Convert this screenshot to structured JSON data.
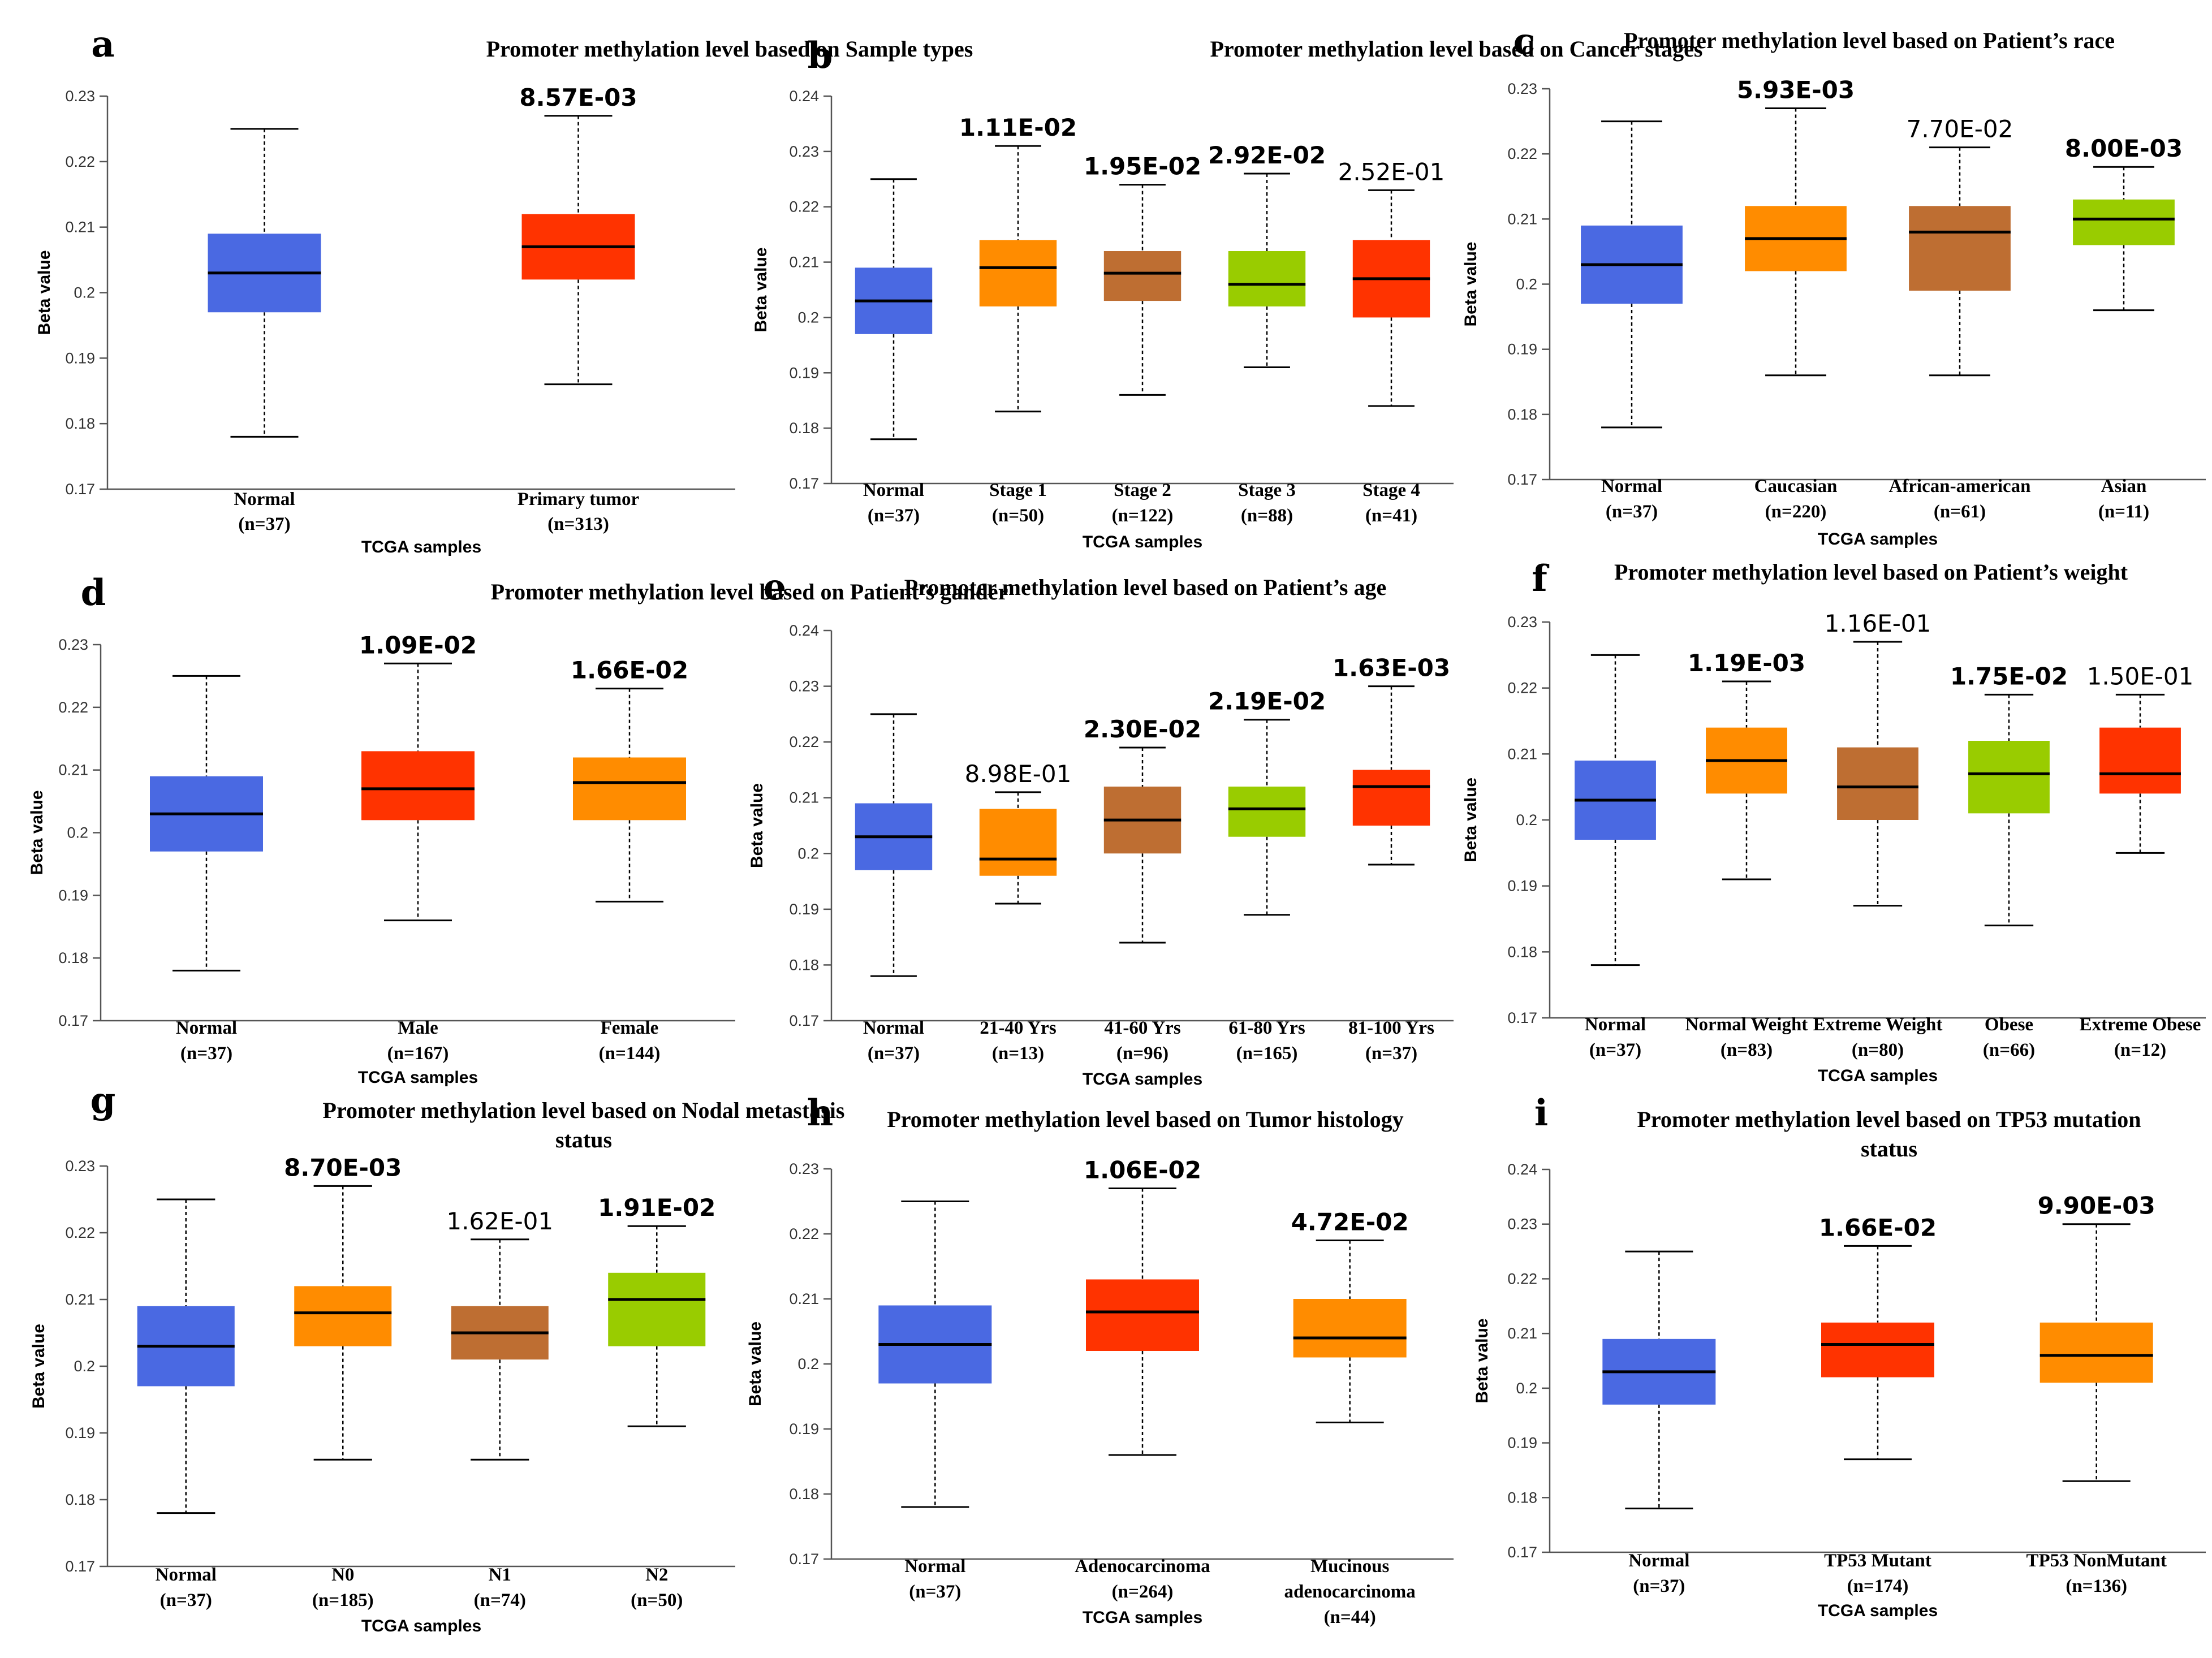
{
  "colors": {
    "normal": "#4A69E2",
    "orange": "#FF8C00",
    "red": "#FF3300",
    "brown": "#BE6E32",
    "green": "#99CC00"
  },
  "chart_data": [
    {
      "type": "box",
      "panel": "a",
      "title": [
        "Promoter methylation level based on Sample types"
      ],
      "xlabel": "TCGA samples",
      "ylabel": "Beta value",
      "ylim": [
        0.17,
        0.23
      ],
      "yticks": [
        "0.17",
        "0.18",
        "0.19",
        "0.2",
        "0.21",
        "0.22",
        "0.23"
      ],
      "boxes": [
        {
          "label": [
            "Normal",
            "(n=37)"
          ],
          "color": "normal",
          "min": 0.178,
          "q1": 0.197,
          "median": 0.203,
          "q3": 0.209,
          "max": 0.225,
          "pvalue": "",
          "pbold": false
        },
        {
          "label": [
            "Primary tumor",
            "(n=313)"
          ],
          "color": "red",
          "min": 0.186,
          "q1": 0.202,
          "median": 0.207,
          "q3": 0.212,
          "max": 0.227,
          "pvalue": "8.57E-03",
          "pbold": true
        }
      ]
    },
    {
      "type": "box",
      "panel": "b",
      "title": [
        "Promoter methylation level based on Cancer stages"
      ],
      "xlabel": "TCGA samples",
      "ylabel": "Beta value",
      "ylim": [
        0.17,
        0.24
      ],
      "yticks": [
        "0.17",
        "0.18",
        "0.19",
        "0.2",
        "0.21",
        "0.22",
        "0.23",
        "0.24"
      ],
      "boxes": [
        {
          "label": [
            "Normal",
            "(n=37)"
          ],
          "color": "normal",
          "min": 0.178,
          "q1": 0.197,
          "median": 0.203,
          "q3": 0.209,
          "max": 0.225,
          "pvalue": "",
          "pbold": false
        },
        {
          "label": [
            "Stage 1",
            "(n=50)"
          ],
          "color": "orange",
          "min": 0.183,
          "q1": 0.202,
          "median": 0.209,
          "q3": 0.214,
          "max": 0.231,
          "pvalue": "1.11E-02",
          "pbold": true
        },
        {
          "label": [
            "Stage 2",
            "(n=122)"
          ],
          "color": "brown",
          "min": 0.186,
          "q1": 0.203,
          "median": 0.208,
          "q3": 0.212,
          "max": 0.224,
          "pvalue": "1.95E-02",
          "pbold": true
        },
        {
          "label": [
            "Stage 3",
            "(n=88)"
          ],
          "color": "green",
          "min": 0.191,
          "q1": 0.202,
          "median": 0.206,
          "q3": 0.212,
          "max": 0.226,
          "pvalue": "2.92E-02",
          "pbold": true
        },
        {
          "label": [
            "Stage 4",
            "(n=41)"
          ],
          "color": "red",
          "min": 0.184,
          "q1": 0.2,
          "median": 0.207,
          "q3": 0.214,
          "max": 0.223,
          "pvalue": "2.52E-01",
          "pbold": false
        }
      ]
    },
    {
      "type": "box",
      "panel": "c",
      "title": [
        "Promoter methylation level based on Patient’s race"
      ],
      "xlabel": "TCGA samples",
      "ylabel": "Beta value",
      "ylim": [
        0.17,
        0.23
      ],
      "yticks": [
        "0.17",
        "0.18",
        "0.19",
        "0.2",
        "0.21",
        "0.22",
        "0.23"
      ],
      "boxes": [
        {
          "label": [
            "Normal",
            "(n=37)"
          ],
          "color": "normal",
          "min": 0.178,
          "q1": 0.197,
          "median": 0.203,
          "q3": 0.209,
          "max": 0.225,
          "pvalue": "",
          "pbold": false
        },
        {
          "label": [
            "Caucasian",
            "(n=220)"
          ],
          "color": "orange",
          "min": 0.186,
          "q1": 0.202,
          "median": 0.207,
          "q3": 0.212,
          "max": 0.227,
          "pvalue": "5.93E-03",
          "pbold": true
        },
        {
          "label": [
            "African-american",
            "(n=61)"
          ],
          "color": "brown",
          "min": 0.186,
          "q1": 0.199,
          "median": 0.208,
          "q3": 0.212,
          "max": 0.221,
          "pvalue": "7.70E-02",
          "pbold": false
        },
        {
          "label": [
            "Asian",
            "(n=11)"
          ],
          "color": "green",
          "min": 0.196,
          "q1": 0.206,
          "median": 0.21,
          "q3": 0.213,
          "max": 0.218,
          "pvalue": "8.00E-03",
          "pbold": true
        }
      ]
    },
    {
      "type": "box",
      "panel": "d",
      "title": [
        "Promoter methylation level based on Patient’s gander"
      ],
      "xlabel": "TCGA samples",
      "ylabel": "Beta value",
      "ylim": [
        0.17,
        0.23
      ],
      "yticks": [
        "0.17",
        "0.18",
        "0.19",
        "0.2",
        "0.21",
        "0.22",
        "0.23"
      ],
      "boxes": [
        {
          "label": [
            "Normal",
            "(n=37)"
          ],
          "color": "normal",
          "min": 0.178,
          "q1": 0.197,
          "median": 0.203,
          "q3": 0.209,
          "max": 0.225,
          "pvalue": "",
          "pbold": false
        },
        {
          "label": [
            "Male",
            "(n=167)"
          ],
          "color": "red",
          "min": 0.186,
          "q1": 0.202,
          "median": 0.207,
          "q3": 0.213,
          "max": 0.227,
          "pvalue": "1.09E-02",
          "pbold": true
        },
        {
          "label": [
            "Female",
            "(n=144)"
          ],
          "color": "orange",
          "min": 0.189,
          "q1": 0.202,
          "median": 0.208,
          "q3": 0.212,
          "max": 0.223,
          "pvalue": "1.66E-02",
          "pbold": true
        }
      ]
    },
    {
      "type": "box",
      "panel": "e",
      "title": [
        "Promoter methylation level based on Patient’s age"
      ],
      "xlabel": "TCGA samples",
      "ylabel": "Beta value",
      "ylim": [
        0.17,
        0.24
      ],
      "yticks": [
        "0.17",
        "0.18",
        "0.19",
        "0.2",
        "0.21",
        "0.22",
        "0.23",
        "0.24"
      ],
      "boxes": [
        {
          "label": [
            "Normal",
            "(n=37)"
          ],
          "color": "normal",
          "min": 0.178,
          "q1": 0.197,
          "median": 0.203,
          "q3": 0.209,
          "max": 0.225,
          "pvalue": "",
          "pbold": false
        },
        {
          "label": [
            "21-40 Yrs",
            "(n=13)"
          ],
          "color": "orange",
          "min": 0.191,
          "q1": 0.196,
          "median": 0.199,
          "q3": 0.208,
          "max": 0.211,
          "pvalue": "8.98E-01",
          "pbold": false
        },
        {
          "label": [
            "41-60 Yrs",
            "(n=96)"
          ],
          "color": "brown",
          "min": 0.184,
          "q1": 0.2,
          "median": 0.206,
          "q3": 0.212,
          "max": 0.219,
          "pvalue": "2.30E-02",
          "pbold": true
        },
        {
          "label": [
            "61-80 Yrs",
            "(n=165)"
          ],
          "color": "green",
          "min": 0.189,
          "q1": 0.203,
          "median": 0.208,
          "q3": 0.212,
          "max": 0.224,
          "pvalue": "2.19E-02",
          "pbold": true
        },
        {
          "label": [
            "81-100 Yrs",
            "(n=37)"
          ],
          "color": "red",
          "min": 0.198,
          "q1": 0.205,
          "median": 0.212,
          "q3": 0.215,
          "max": 0.23,
          "pvalue": "1.63E-03",
          "pbold": true
        }
      ]
    },
    {
      "type": "box",
      "panel": "f",
      "title": [
        "Promoter methylation level based on Patient’s weight"
      ],
      "xlabel": "TCGA samples",
      "ylabel": "Beta value",
      "ylim": [
        0.17,
        0.23
      ],
      "yticks": [
        "0.17",
        "0.18",
        "0.19",
        "0.2",
        "0.21",
        "0.22",
        "0.23"
      ],
      "boxes": [
        {
          "label": [
            "Normal",
            "(n=37)"
          ],
          "color": "normal",
          "min": 0.178,
          "q1": 0.197,
          "median": 0.203,
          "q3": 0.209,
          "max": 0.225,
          "pvalue": "",
          "pbold": false
        },
        {
          "label": [
            "Normal Weight",
            "(n=83)"
          ],
          "color": "orange",
          "min": 0.191,
          "q1": 0.204,
          "median": 0.209,
          "q3": 0.214,
          "max": 0.221,
          "pvalue": "1.19E-03",
          "pbold": true
        },
        {
          "label": [
            "Extreme Weight",
            "(n=80)"
          ],
          "color": "brown",
          "min": 0.187,
          "q1": 0.2,
          "median": 0.205,
          "q3": 0.211,
          "max": 0.227,
          "pvalue": "1.16E-01",
          "pbold": false
        },
        {
          "label": [
            "Obese",
            "(n=66)"
          ],
          "color": "green",
          "min": 0.184,
          "q1": 0.201,
          "median": 0.207,
          "q3": 0.212,
          "max": 0.219,
          "pvalue": "1.75E-02",
          "pbold": true
        },
        {
          "label": [
            "Extreme Obese",
            "(n=12)"
          ],
          "color": "red",
          "min": 0.195,
          "q1": 0.204,
          "median": 0.207,
          "q3": 0.214,
          "max": 0.219,
          "pvalue": "1.50E-01",
          "pbold": false
        }
      ]
    },
    {
      "type": "box",
      "panel": "g",
      "title": [
        "Promoter methylation level based on Nodal metastasis",
        "status"
      ],
      "xlabel": "TCGA samples",
      "ylabel": "Beta value",
      "ylim": [
        0.17,
        0.23
      ],
      "yticks": [
        "0.17",
        "0.18",
        "0.19",
        "0.2",
        "0.21",
        "0.22",
        "0.23"
      ],
      "boxes": [
        {
          "label": [
            "Normal",
            "(n=37)"
          ],
          "color": "normal",
          "min": 0.178,
          "q1": 0.197,
          "median": 0.203,
          "q3": 0.209,
          "max": 0.225,
          "pvalue": "",
          "pbold": false
        },
        {
          "label": [
            "N0",
            "(n=185)"
          ],
          "color": "orange",
          "min": 0.186,
          "q1": 0.203,
          "median": 0.208,
          "q3": 0.212,
          "max": 0.227,
          "pvalue": "8.70E-03",
          "pbold": true
        },
        {
          "label": [
            "N1",
            "(n=74)"
          ],
          "color": "brown",
          "min": 0.186,
          "q1": 0.201,
          "median": 0.205,
          "q3": 0.209,
          "max": 0.219,
          "pvalue": "1.62E-01",
          "pbold": false
        },
        {
          "label": [
            "N2",
            "(n=50)"
          ],
          "color": "green",
          "min": 0.191,
          "q1": 0.203,
          "median": 0.21,
          "q3": 0.214,
          "max": 0.221,
          "pvalue": "1.91E-02",
          "pbold": true
        }
      ]
    },
    {
      "type": "box",
      "panel": "h",
      "title": [
        "Promoter methylation level based on Tumor histology"
      ],
      "xlabel": "TCGA samples",
      "ylabel": "Beta value",
      "ylim": [
        0.17,
        0.23
      ],
      "yticks": [
        "0.17",
        "0.18",
        "0.19",
        "0.2",
        "0.21",
        "0.22",
        "0.23"
      ],
      "boxes": [
        {
          "label": [
            "Normal",
            "(n=37)"
          ],
          "color": "normal",
          "min": 0.178,
          "q1": 0.197,
          "median": 0.203,
          "q3": 0.209,
          "max": 0.225,
          "pvalue": "",
          "pbold": false
        },
        {
          "label": [
            "Adenocarcinoma",
            "(n=264)"
          ],
          "color": "red",
          "min": 0.186,
          "q1": 0.202,
          "median": 0.208,
          "q3": 0.213,
          "max": 0.227,
          "pvalue": "1.06E-02",
          "pbold": true
        },
        {
          "label": [
            "Mucinous",
            "adenocarcinoma",
            "(n=44)"
          ],
          "color": "orange",
          "min": 0.191,
          "q1": 0.201,
          "median": 0.204,
          "q3": 0.21,
          "max": 0.219,
          "pvalue": "4.72E-02",
          "pbold": true
        }
      ]
    },
    {
      "type": "box",
      "panel": "i",
      "title": [
        "Promoter methylation level based on TP53 mutation",
        "status"
      ],
      "xlabel": "TCGA samples",
      "ylabel": "Beta value",
      "ylim": [
        0.17,
        0.24
      ],
      "yticks": [
        "0.17",
        "0.18",
        "0.19",
        "0.2",
        "0.21",
        "0.22",
        "0.23",
        "0.24"
      ],
      "boxes": [
        {
          "label": [
            "Normal",
            "(n=37)"
          ],
          "color": "normal",
          "min": 0.178,
          "q1": 0.197,
          "median": 0.203,
          "q3": 0.209,
          "max": 0.225,
          "pvalue": "",
          "pbold": false
        },
        {
          "label": [
            "TP53 Mutant",
            "(n=174)"
          ],
          "color": "red",
          "min": 0.187,
          "q1": 0.202,
          "median": 0.208,
          "q3": 0.212,
          "max": 0.226,
          "pvalue": "1.66E-02",
          "pbold": true
        },
        {
          "label": [
            "TP53 NonMutant",
            "(n=136)"
          ],
          "color": "orange",
          "min": 0.183,
          "q1": 0.201,
          "median": 0.206,
          "q3": 0.212,
          "max": 0.23,
          "pvalue": "9.90E-03",
          "pbold": true
        }
      ]
    }
  ]
}
